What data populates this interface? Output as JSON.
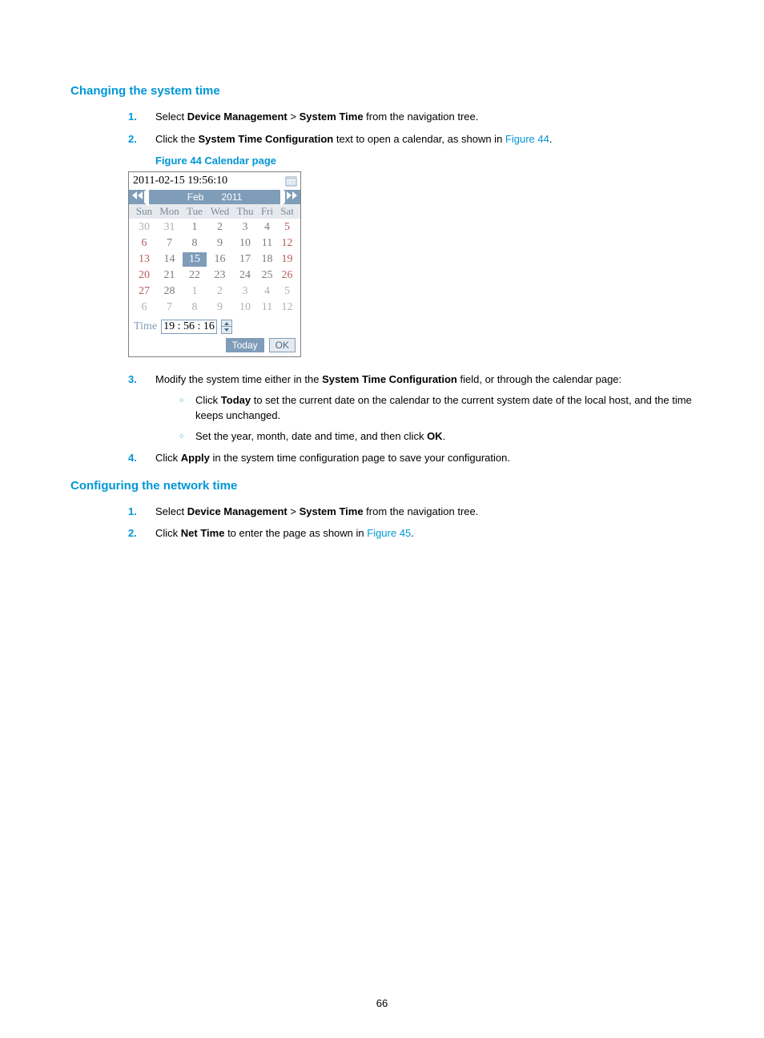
{
  "page_number": "66",
  "section1": {
    "title": "Changing the system time",
    "steps": [
      {
        "num": "1.",
        "prefix": "Select ",
        "b1": "Device Management",
        "mid1": " > ",
        "b2": "System Time",
        "suffix": " from the navigation tree."
      },
      {
        "num": "2.",
        "prefix": "Click the ",
        "b1": "System Time Configuration",
        "mid1": " text to open a calendar, as shown in ",
        "link": "Figure 44",
        "suffix": "."
      },
      {
        "num": "3.",
        "prefix": "Modify the system time either in the ",
        "b1": "System Time Configuration",
        "suffix": " field, or through the calendar page:",
        "sub": [
          {
            "prefix": "Click ",
            "b1": "Today",
            "suffix": " to set the current date on the calendar to the current system date of the local host, and the time keeps unchanged."
          },
          {
            "prefix": "Set the year, month, date and time, and then click ",
            "b1": "OK",
            "suffix": "."
          }
        ]
      },
      {
        "num": "4.",
        "prefix": "Click ",
        "b1": "Apply",
        "suffix": " in the system time configuration page to save your configuration."
      }
    ],
    "figure_caption": "Figure 44 Calendar page"
  },
  "calendar": {
    "datetime_text": "2011-02-15 19:56:10",
    "month": "Feb",
    "year": "2011",
    "dow": [
      "Sun",
      "Mon",
      "Tue",
      "Wed",
      "Thu",
      "Fri",
      "Sat"
    ],
    "rows": [
      [
        {
          "v": "30",
          "c": "other"
        },
        {
          "v": "31",
          "c": "other"
        },
        {
          "v": "1",
          "c": "cur"
        },
        {
          "v": "2",
          "c": "cur"
        },
        {
          "v": "3",
          "c": "cur"
        },
        {
          "v": "4",
          "c": "cur"
        },
        {
          "v": "5",
          "c": "sat"
        }
      ],
      [
        {
          "v": "6",
          "c": "sun"
        },
        {
          "v": "7",
          "c": "cur"
        },
        {
          "v": "8",
          "c": "cur"
        },
        {
          "v": "9",
          "c": "cur"
        },
        {
          "v": "10",
          "c": "cur"
        },
        {
          "v": "11",
          "c": "cur"
        },
        {
          "v": "12",
          "c": "sat"
        }
      ],
      [
        {
          "v": "13",
          "c": "sun"
        },
        {
          "v": "14",
          "c": "cur"
        },
        {
          "v": "15",
          "c": "sel"
        },
        {
          "v": "16",
          "c": "cur"
        },
        {
          "v": "17",
          "c": "cur"
        },
        {
          "v": "18",
          "c": "cur"
        },
        {
          "v": "19",
          "c": "sat"
        }
      ],
      [
        {
          "v": "20",
          "c": "sun"
        },
        {
          "v": "21",
          "c": "cur"
        },
        {
          "v": "22",
          "c": "cur"
        },
        {
          "v": "23",
          "c": "cur"
        },
        {
          "v": "24",
          "c": "cur"
        },
        {
          "v": "25",
          "c": "cur"
        },
        {
          "v": "26",
          "c": "sat"
        }
      ],
      [
        {
          "v": "27",
          "c": "sun"
        },
        {
          "v": "28",
          "c": "cur"
        },
        {
          "v": "1",
          "c": "other"
        },
        {
          "v": "2",
          "c": "other"
        },
        {
          "v": "3",
          "c": "other"
        },
        {
          "v": "4",
          "c": "other"
        },
        {
          "v": "5",
          "c": "other"
        }
      ],
      [
        {
          "v": "6",
          "c": "other"
        },
        {
          "v": "7",
          "c": "other"
        },
        {
          "v": "8",
          "c": "other"
        },
        {
          "v": "9",
          "c": "other"
        },
        {
          "v": "10",
          "c": "other"
        },
        {
          "v": "11",
          "c": "other"
        },
        {
          "v": "12",
          "c": "other"
        }
      ]
    ],
    "time_label": "Time",
    "time_value": "19 : 56 : 16",
    "btn_today": "Today",
    "btn_ok": "OK"
  },
  "section2": {
    "title": "Configuring the network time",
    "steps": [
      {
        "num": "1.",
        "prefix": "Select ",
        "b1": "Device Management",
        "mid1": " > ",
        "b2": "System Time",
        "suffix": " from the navigation tree."
      },
      {
        "num": "2.",
        "prefix": "Click ",
        "b1": "Net Time",
        "mid1": " to enter the page as shown in ",
        "link": "Figure 45",
        "suffix": "."
      }
    ]
  },
  "colors": {
    "hp_blue": "#0096d6",
    "cal_header": "#7f9db9"
  }
}
